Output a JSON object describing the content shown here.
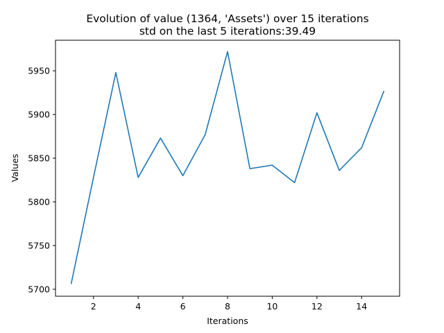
{
  "chart_data": {
    "type": "line",
    "title": "Evolution of value (1364, 'Assets') over 15 iterations",
    "subtitle": "std on the last 5 iterations:39.49",
    "xlabel": "Iterations",
    "ylabel": "Values",
    "xlim": [
      0.3,
      15.7
    ],
    "ylim": [
      5692,
      5985
    ],
    "x_ticks": [
      2,
      4,
      6,
      8,
      10,
      12,
      14
    ],
    "y_ticks": [
      5700,
      5750,
      5800,
      5850,
      5900,
      5950
    ],
    "grid": false,
    "legend": "none",
    "series": [
      {
        "color": "#1f77b4",
        "x": [
          1,
          2,
          3,
          4,
          5,
          6,
          7,
          8,
          9,
          10,
          11,
          12,
          13,
          14,
          15
        ],
        "values": [
          5706,
          5828,
          5948,
          5828,
          5873,
          5830,
          5877,
          5972,
          5838,
          5842,
          5822,
          5902,
          5836,
          5862,
          5927
        ]
      }
    ]
  }
}
